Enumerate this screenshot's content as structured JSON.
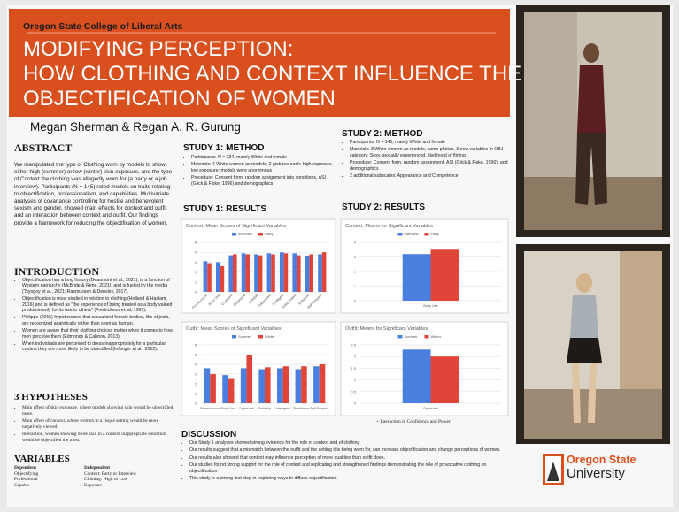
{
  "header": {
    "college": "Oregon State College of Liberal Arts",
    "title_lines": [
      "MODIFYING PERCEPTION:",
      "HOW CLOTHING AND CONTEXT INFLUENCE THE",
      "OBJECTIFICATION OF WOMEN"
    ],
    "authors": "Megan Sherman & Regan A. R. Gurung"
  },
  "abstract": {
    "heading": "ABSTRACT",
    "text": "We manipulated the type of Clothing worn by models to show either high (summer) or low (winter) skin exposure, and the type of Context the clothing was allegedly worn for (a party or a job interview). Participants (N = 145) rated models on traits relating to objectification, professionalism, and capabilities. Multivariate analyses of covariance controlling for hostile and benevolent sexism and gender, showed main effects for context and outfit and an interaction between context and outfit. Our findings provide a framework for reducing the objectification of women."
  },
  "introduction": {
    "heading": "INTRODUCTION",
    "bullets": [
      "Objectification has a long history (Beaumont et al., 2021), is a function of Western patriarchy (McBride & Rene, 2021), and is fueled by the media (Tsyopoy et al., 2021; Rasmussen & Densley, 2017).",
      "Objectification is most studied in relation to clothing (Holland & Haslam, 2016) and is defined as \"the experience of being treated as a body valued predominantly for its use to others\" (Fredrickson et. al, 1997).",
      "Philippe (2015) hypothesized that sexualized female bodies, like objects, are recognized analytically rather than seen as human.",
      "Women are aware that their clothing choices matter when it comes to how men perceive them (Edmonds & Cahoon, 2013).",
      "When individuals are perceived to dress inappropriately for a particular context they are more likely to be objectified (Infanger et al., 2012)."
    ]
  },
  "hypotheses": {
    "heading": "3 HYPOTHESES",
    "bullets": [
      "Main effect of skin exposure, where models showing skin would be objectified more.",
      "Main effect of context, where women in a risqué setting would be more negatively viewed.",
      "Interaction, women showing more skin in a context inappropriate condition would be objectified the most."
    ]
  },
  "variables": {
    "heading": "VARIABLES",
    "dependent": {
      "heading": "Dependent",
      "items": [
        "Objectifying",
        "Professional",
        "Capable"
      ]
    },
    "independent": {
      "heading": "Independent",
      "items": [
        "Context: Party or Interview",
        "Clothing: High or Low",
        "Exposure"
      ]
    }
  },
  "study1": {
    "method_heading": "STUDY 1: METHOD",
    "bullets": [
      "Participants: N = 334, mainly White and female",
      "Materials: 4 White women as models, 2 pictures each: high exposure, low exposure; models were anonymous",
      "Procedure: Consent form, random assignment into conditions, ASI (Glick & Fiske, 1996) and demographics"
    ],
    "results_heading": "STUDY 1: RESULTS"
  },
  "study2": {
    "method_heading": "STUDY 2: METHOD",
    "bullets": [
      "Participants: N =  145, mainly White and female",
      "Materials: 3 White women as models, same photos, 3 new variables in OBJ category: Sexy, sexually experienced, likelihood of flirting",
      "Procedure: Consent form, random assignment, ASI (Glick & Fiske, 1996), and demographics",
      "2 additional subscales: Appearance and Competence"
    ],
    "results_heading": "STUDY 2: RESULTS",
    "note": "+ Interaction in Confidence and Power"
  },
  "discussion": {
    "heading": "DISCUSSION",
    "bullets": [
      "Our Study 1 analyses showed strong evidence for the role of context and of clothing",
      "Our results suggest that a mismatch between the outfit and the setting it is being worn for, can increase objectification and change perceptions of women.",
      "Our results also showed that context may influence perception of more qualities than outfit does.",
      "Our studies found strong support for the role of context and replicating and strengthened findings demonstrating the role of provocative clothing on objectification",
      "This study is a strong first step in exploring ways to diffuse objectification"
    ]
  },
  "logo": {
    "line1": "Oregon State",
    "line2": "University"
  },
  "chart_data": [
    {
      "type": "bar",
      "title": "Context: Mean Scores of Significant Variables",
      "categories": [
        "Promiscuous",
        "Body Use",
        "Confident",
        "Organized",
        "Reliable",
        "Dependent",
        "Intelligent",
        "Independent",
        "Religious",
        "Self-Respect"
      ],
      "series": [
        {
          "name": "Interview",
          "color": "#4a7fe0",
          "values": [
            3.1,
            3.0,
            3.7,
            3.9,
            3.8,
            3.9,
            4.0,
            3.9,
            3.6,
            3.8
          ]
        },
        {
          "name": "Party",
          "color": "#e0453a",
          "values": [
            2.9,
            2.6,
            3.8,
            3.8,
            3.7,
            3.8,
            3.9,
            3.7,
            3.8,
            4.0
          ]
        }
      ],
      "ylim": [
        0,
        5
      ],
      "yticks": [
        0,
        1,
        2,
        3,
        4,
        5
      ],
      "grid": true,
      "legend": "top"
    },
    {
      "type": "bar",
      "title": "Context: Means for Significant Variables",
      "categories": [
        "Body Use"
      ],
      "series": [
        {
          "name": "Interview",
          "color": "#4a7fe0",
          "values": [
            3.2
          ]
        },
        {
          "name": "Party",
          "color": "#e0453a",
          "values": [
            3.5
          ]
        }
      ],
      "ylim": [
        0,
        4
      ],
      "yticks": [
        0,
        1,
        2,
        3,
        4
      ],
      "grid": true,
      "legend": "top"
    },
    {
      "type": "bar",
      "title": "Outfit: Mean Scores of Significant Variables",
      "categories": [
        "Promiscuous",
        "Body Use",
        "Organized",
        "Reliable",
        "Intelligent",
        "Resilience",
        "Self Respect"
      ],
      "series": [
        {
          "name": "Summer",
          "color": "#4a7fe0",
          "values": [
            3.6,
            2.9,
            3.6,
            3.5,
            3.6,
            3.5,
            3.8
          ]
        },
        {
          "name": "Winter",
          "color": "#e0453a",
          "values": [
            3.0,
            2.5,
            5.0,
            3.7,
            3.8,
            3.8,
            4.0
          ]
        }
      ],
      "ylim": [
        0,
        6
      ],
      "yticks": [
        0,
        1,
        2,
        3,
        4,
        5,
        6
      ],
      "grid": true,
      "legend": "top"
    },
    {
      "type": "bar",
      "title": "Outfit: Means for Significant Variables",
      "categories": [
        "Organized"
      ],
      "series": [
        {
          "name": "Summer",
          "color": "#4a7fe0",
          "values": [
            2.3
          ]
        },
        {
          "name": "Winter",
          "color": "#e0453a",
          "values": [
            2.0
          ]
        }
      ],
      "ylim": [
        0,
        2.5
      ],
      "yticks": [
        0,
        0.5,
        1,
        1.5,
        2,
        2.5
      ],
      "grid": true,
      "legend": "top"
    }
  ]
}
